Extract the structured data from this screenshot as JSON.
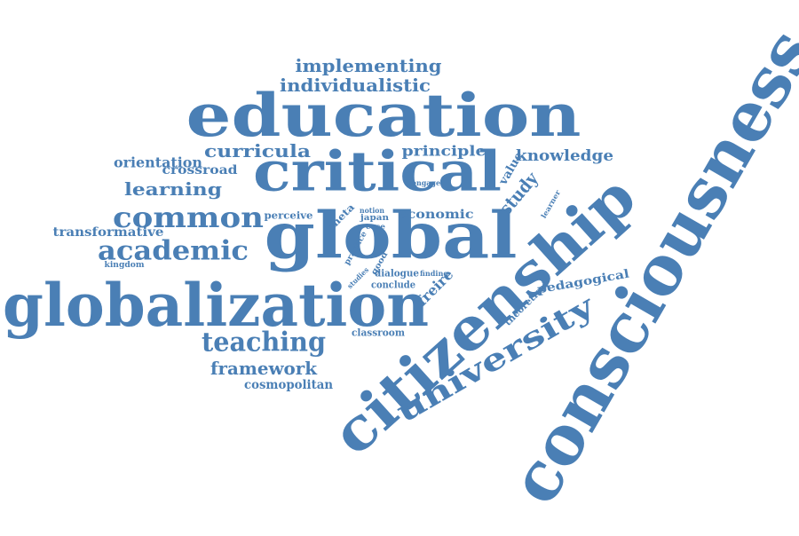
{
  "color": "#4a7fb5",
  "words": [
    {
      "id": "consciousness",
      "text": "consciousness"
    },
    {
      "id": "citizenship",
      "text": "citizenship"
    },
    {
      "id": "globalization",
      "text": "globalization"
    },
    {
      "id": "education",
      "text": "education"
    },
    {
      "id": "global",
      "text": "global"
    },
    {
      "id": "critical",
      "text": "critical"
    },
    {
      "id": "university",
      "text": "university"
    },
    {
      "id": "common",
      "text": "common"
    },
    {
      "id": "academic",
      "text": "academic"
    },
    {
      "id": "teaching",
      "text": "teaching"
    },
    {
      "id": "implementing",
      "text": "implementing"
    },
    {
      "id": "individualistic",
      "text": "individualistic"
    },
    {
      "id": "curricula",
      "text": "curricula"
    },
    {
      "id": "learning",
      "text": "learning"
    },
    {
      "id": "framework",
      "text": "framework"
    },
    {
      "id": "knowledge",
      "text": "knowledge"
    },
    {
      "id": "principle",
      "text": "principle"
    },
    {
      "id": "orientation",
      "text": "orientation"
    },
    {
      "id": "crossroad",
      "text": "crossroad"
    },
    {
      "id": "transformative",
      "text": "transformative"
    },
    {
      "id": "cosmopolitan",
      "text": "cosmopolitan"
    },
    {
      "id": "economic",
      "text": "economic"
    },
    {
      "id": "pedagogical",
      "text": "pedagogical"
    },
    {
      "id": "study",
      "text": "study"
    },
    {
      "id": "value",
      "text": "value"
    },
    {
      "id": "freire",
      "text": "freire"
    },
    {
      "id": "theoretical",
      "text": "theoretical"
    },
    {
      "id": "meta",
      "text": "meta"
    },
    {
      "id": "perceive",
      "text": "perceive"
    },
    {
      "id": "dialogue",
      "text": "dialogue"
    },
    {
      "id": "conclude",
      "text": "conclude"
    },
    {
      "id": "classroom",
      "text": "classroom"
    },
    {
      "id": "kingdom",
      "text": "kingdom"
    },
    {
      "id": "engage",
      "text": "engage"
    },
    {
      "id": "learner",
      "text": "learner"
    },
    {
      "id": "notion",
      "text": "notion"
    },
    {
      "id": "japan",
      "text": "japan"
    },
    {
      "id": "case",
      "text": "case"
    },
    {
      "id": "practice",
      "text": "practice"
    },
    {
      "id": "good",
      "text": "good"
    },
    {
      "id": "studies",
      "text": "studies"
    },
    {
      "id": "finding",
      "text": "finding"
    }
  ]
}
